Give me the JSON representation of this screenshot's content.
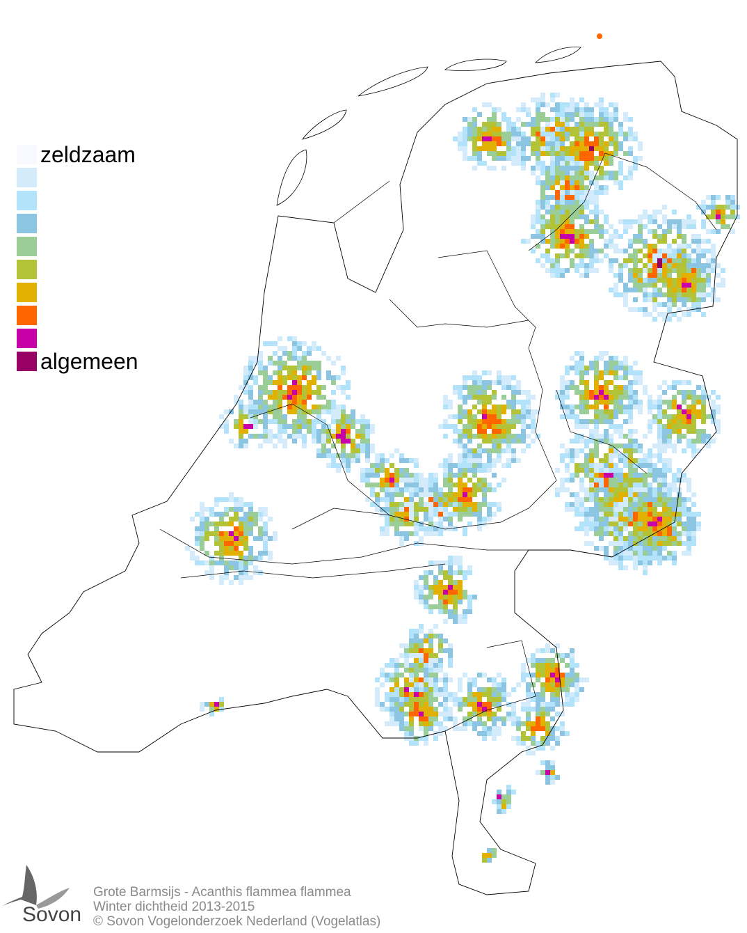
{
  "legend": {
    "label_low": "zeldzaam",
    "label_high": "algemeen",
    "colors": [
      "#f8f8ff",
      "#d3ebfa",
      "#b3e3fa",
      "#8cc5e1",
      "#9acd98",
      "#b3c337",
      "#e1b000",
      "#ff6600",
      "#c800a8",
      "#990066"
    ]
  },
  "footer": {
    "line1": "Grote Barmsijs - Acanthis flammea flammea",
    "line2": "Winter dichtheid 2013-2015",
    "line3": "© Sovon Vogelonderzoek Nederland (Vogelatlas)"
  },
  "logo": {
    "text": "Sovon"
  },
  "map": {
    "outline_color": "#000000",
    "background": "#ffffff"
  }
}
